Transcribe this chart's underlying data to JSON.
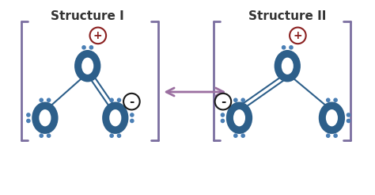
{
  "title_left": "Structure I",
  "title_right": "Structure II",
  "bg_color": "#ffffff",
  "O_color": "#2d5f8a",
  "dot_color": "#4a7fb5",
  "bracket_color": "#7b6fa0",
  "plus_circle_color": "#8b2020",
  "minus_circle_color": "#1a1a1a",
  "arrow_color": "#9b6fa0",
  "title_fontsize": 11
}
